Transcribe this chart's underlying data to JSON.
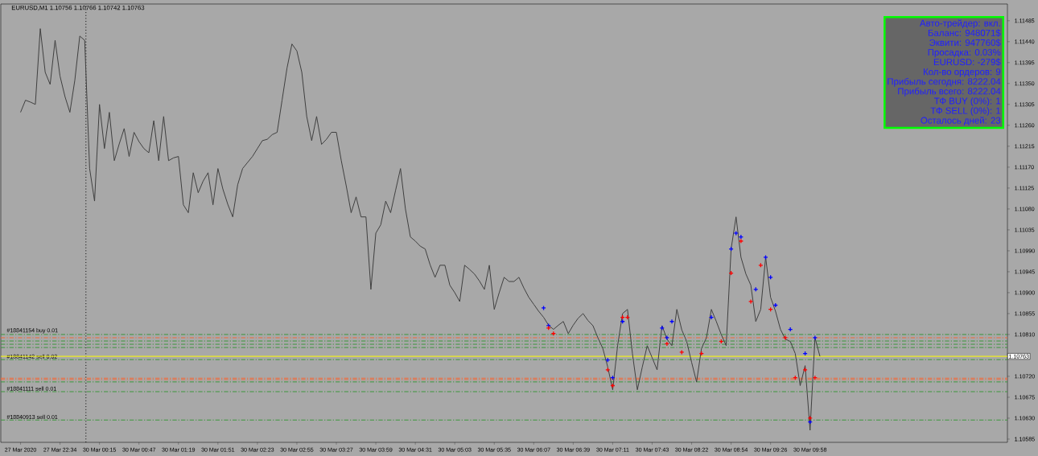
{
  "chart_data": {
    "type": "line",
    "title": "EURUSD,M1  1.10756 1.10766 1.10742 1.10763",
    "ylim": [
      1.10578,
      1.11521
    ],
    "categories": [
      "27 Mar 2020",
      null,
      null,
      null,
      null,
      null,
      null,
      null,
      "27 Mar 22:34",
      null,
      null,
      null,
      null,
      null,
      null,
      null,
      "30 Mar 00:15",
      null,
      null,
      null,
      null,
      null,
      null,
      null,
      "30 Mar 00:47",
      null,
      null,
      null,
      null,
      null,
      null,
      null,
      "30 Mar 01:19",
      null,
      null,
      null,
      null,
      null,
      null,
      null,
      "30 Mar 01:51",
      null,
      null,
      null,
      null,
      null,
      null,
      null,
      "30 Mar 02:23",
      null,
      null,
      null,
      null,
      null,
      null,
      null,
      "30 Mar 02:55",
      null,
      null,
      null,
      null,
      null,
      null,
      null,
      "30 Mar 03:27",
      null,
      null,
      null,
      null,
      null,
      null,
      null,
      "30 Mar 03:59",
      null,
      null,
      null,
      null,
      null,
      null,
      null,
      "30 Mar 04:31",
      null,
      null,
      null,
      null,
      null,
      null,
      null,
      "30 Mar 05:03",
      null,
      null,
      null,
      null,
      null,
      null,
      null,
      "30 Mar 05:35",
      null,
      null,
      null,
      null,
      null,
      null,
      null,
      "30 Mar 06:07",
      null,
      null,
      null,
      null,
      null,
      null,
      null,
      "30 Mar 06:39",
      null,
      null,
      null,
      null,
      null,
      null,
      null,
      "30 Mar 07:11",
      null,
      null,
      null,
      null,
      null,
      null,
      null,
      "30 Mar 07:43",
      null,
      null,
      null,
      null,
      null,
      null,
      null,
      "30 Mar 08:22",
      null,
      null,
      null,
      null,
      null,
      null,
      null,
      "30 Mar 08:54",
      null,
      null,
      null,
      null,
      null,
      null,
      null,
      "30 Mar 09:26",
      null,
      null,
      null,
      null,
      null,
      null,
      null,
      "30 Mar 09:58",
      null,
      null,
      null,
      null,
      null,
      null,
      null,
      null,
      null,
      null,
      null,
      null,
      null,
      null,
      null,
      null,
      null,
      null,
      null,
      null,
      null,
      null,
      null,
      null,
      null,
      null,
      null,
      null,
      null,
      null,
      null,
      null,
      null,
      null,
      null,
      null,
      null,
      null,
      null,
      null
    ],
    "yticks": [
      {
        "value": 1.11485,
        "label": "1.11485"
      },
      {
        "value": 1.1144,
        "label": "1.11440"
      },
      {
        "value": 1.11395,
        "label": "1.11395"
      },
      {
        "value": 1.1135,
        "label": "1.11350"
      },
      {
        "value": 1.11305,
        "label": "1.11305"
      },
      {
        "value": 1.1126,
        "label": "1.11260"
      },
      {
        "value": 1.11215,
        "label": "1.11215"
      },
      {
        "value": 1.1117,
        "label": "1.11170"
      },
      {
        "value": 1.11125,
        "label": "1.11125"
      },
      {
        "value": 1.1108,
        "label": "1.11080"
      },
      {
        "value": 1.11035,
        "label": "1.11035"
      },
      {
        "value": 1.1099,
        "label": "1.10990"
      },
      {
        "value": 1.10945,
        "label": "1.10945"
      },
      {
        "value": 1.109,
        "label": "1.10900"
      },
      {
        "value": 1.10855,
        "label": "1.10855"
      },
      {
        "value": 1.1081,
        "label": "1.10810"
      },
      {
        "value": 1.10765,
        "label": null
      },
      {
        "value": 1.1072,
        "label": "1.10720"
      },
      {
        "value": 1.10675,
        "label": "1.10675"
      },
      {
        "value": 1.1063,
        "label": "1.10630"
      },
      {
        "value": 1.10585,
        "label": "1.10585"
      }
    ],
    "series": [
      {
        "color": "#404040",
        "values": [
          1.11288,
          1.11314,
          1.1131,
          1.11305,
          1.11468,
          1.11374,
          1.11348,
          1.11443,
          1.11366,
          1.11322,
          1.11288,
          1.11357,
          1.11452,
          1.11443,
          1.11167,
          1.11097,
          1.11305,
          1.1121,
          1.11288,
          1.11184,
          1.1122,
          1.11253,
          1.11193,
          1.11245,
          1.11225,
          1.1121,
          1.11201,
          1.1127,
          1.11184,
          1.11279,
          1.11184,
          1.1119,
          1.11193,
          1.11089,
          1.11072,
          1.11158,
          1.11115,
          1.1114,
          1.11158,
          1.11089,
          1.11167,
          1.11123,
          1.1109,
          1.11063,
          1.11132,
          1.11167,
          1.1118,
          1.11193,
          1.1121,
          1.11227,
          1.1123,
          1.1124,
          1.11245,
          1.11314,
          1.11383,
          1.11435,
          1.1142,
          1.11374,
          1.11279,
          1.11227,
          1.11279,
          1.11219,
          1.1123,
          1.11245,
          1.11245,
          1.11184,
          1.1113,
          1.11072,
          1.11106,
          1.11063,
          1.11063,
          1.10907,
          1.11028,
          1.11046,
          1.11097,
          1.11072,
          1.1112,
          1.11167,
          1.1108,
          1.1102,
          1.11011,
          1.11,
          1.10994,
          1.1096,
          1.10933,
          1.10959,
          1.10959,
          1.10916,
          1.109,
          1.10881,
          1.10959,
          1.1095,
          1.1094,
          1.10925,
          1.10907,
          1.10959,
          1.10864,
          1.109,
          1.10933,
          1.10924,
          1.10924,
          1.10933,
          1.1091,
          1.1089,
          1.10875,
          1.1086,
          1.10847,
          1.1083,
          1.10821,
          1.1083,
          1.10838,
          1.10812,
          1.1083,
          1.10845,
          1.10855,
          1.1084,
          1.10829,
          1.10803,
          1.1078,
          1.1074,
          1.10691,
          1.10786,
          1.10855,
          1.10864,
          1.10769,
          1.10691,
          1.1074,
          1.10786,
          1.1076,
          1.10734,
          1.10829,
          1.108,
          1.10786,
          1.10864,
          1.1082,
          1.10795,
          1.1075,
          1.10708,
          1.1078,
          1.10803,
          1.10864,
          1.10838,
          1.1081,
          1.10786,
          1.10994,
          1.11063,
          1.10976,
          1.1094,
          1.10916,
          1.10838,
          1.10864,
          1.10976,
          1.1089,
          1.1086,
          1.10821,
          1.108,
          1.10795,
          1.10769,
          1.107,
          1.10743,
          1.10604,
          1.10803,
          1.10763,
          null,
          null,
          null,
          null,
          null,
          null,
          null,
          null,
          null,
          null,
          null,
          null,
          null,
          null,
          null,
          null,
          null,
          null,
          null,
          null,
          null,
          null,
          null,
          null,
          null,
          null,
          null,
          null,
          null,
          null,
          null,
          null,
          null,
          null,
          null,
          null,
          null,
          null
        ]
      },
      {
        "type": "scatter",
        "color": "#0000ff",
        "marker": "cross",
        "values": [
          null,
          null,
          null,
          null,
          null,
          null,
          null,
          null,
          null,
          null,
          null,
          null,
          null,
          null,
          null,
          null,
          null,
          null,
          null,
          null,
          null,
          null,
          null,
          null,
          null,
          null,
          null,
          null,
          null,
          null,
          null,
          null,
          null,
          null,
          null,
          null,
          null,
          null,
          null,
          null,
          null,
          null,
          null,
          null,
          null,
          null,
          null,
          null,
          null,
          null,
          null,
          null,
          null,
          null,
          null,
          null,
          null,
          null,
          null,
          null,
          null,
          null,
          null,
          null,
          null,
          null,
          null,
          null,
          null,
          null,
          null,
          null,
          null,
          null,
          null,
          null,
          null,
          null,
          null,
          null,
          null,
          null,
          null,
          null,
          null,
          null,
          null,
          null,
          null,
          null,
          null,
          null,
          null,
          null,
          null,
          null,
          null,
          null,
          null,
          null,
          null,
          null,
          null,
          null,
          null,
          null,
          1.10867,
          1.10829,
          null,
          null,
          null,
          null,
          null,
          null,
          null,
          null,
          null,
          null,
          null,
          1.10755,
          1.10717,
          null,
          1.10838,
          null,
          null,
          null,
          null,
          null,
          null,
          null,
          1.10824,
          1.10803,
          1.10838,
          null,
          null,
          null,
          null,
          null,
          null,
          null,
          1.10847,
          null,
          null,
          null,
          1.10994,
          1.11028,
          1.1102,
          null,
          null,
          1.10907,
          null,
          1.10976,
          1.10933,
          1.10873,
          null,
          null,
          1.10821,
          null,
          null,
          1.10769,
          1.10622,
          1.10803,
          null,
          null,
          null,
          null,
          null,
          null,
          null,
          null,
          null,
          null,
          null,
          null,
          null,
          null,
          null,
          null,
          null,
          null,
          null,
          null,
          null,
          null,
          null,
          null,
          null,
          null,
          null,
          null,
          null,
          null,
          null,
          null,
          null,
          null,
          null,
          null,
          null,
          null,
          null
        ]
      },
      {
        "type": "scatter",
        "color": "#ff0000",
        "marker": "cross",
        "values": [
          null,
          null,
          null,
          null,
          null,
          null,
          null,
          null,
          null,
          null,
          null,
          null,
          null,
          null,
          null,
          null,
          null,
          null,
          null,
          null,
          null,
          null,
          null,
          null,
          null,
          null,
          null,
          null,
          null,
          null,
          null,
          null,
          null,
          null,
          null,
          null,
          null,
          null,
          null,
          null,
          null,
          null,
          null,
          null,
          null,
          null,
          null,
          null,
          null,
          null,
          null,
          null,
          null,
          null,
          null,
          null,
          null,
          null,
          null,
          null,
          null,
          null,
          null,
          null,
          null,
          null,
          null,
          null,
          null,
          null,
          null,
          null,
          null,
          null,
          null,
          null,
          null,
          null,
          null,
          null,
          null,
          null,
          null,
          null,
          null,
          null,
          null,
          null,
          null,
          null,
          null,
          null,
          null,
          null,
          null,
          null,
          null,
          null,
          null,
          null,
          null,
          null,
          null,
          null,
          null,
          null,
          null,
          1.10824,
          1.10812,
          null,
          null,
          null,
          null,
          null,
          null,
          null,
          null,
          null,
          null,
          1.10734,
          1.107,
          null,
          1.10847,
          1.10847,
          null,
          null,
          null,
          null,
          null,
          null,
          null,
          1.1079,
          null,
          null,
          1.10772,
          null,
          null,
          null,
          1.10769,
          null,
          null,
          null,
          1.10795,
          null,
          1.10942,
          null,
          1.11011,
          null,
          1.10881,
          null,
          1.10959,
          null,
          1.10864,
          null,
          null,
          1.10803,
          null,
          1.10717,
          null,
          1.10734,
          1.1063,
          1.10717,
          null,
          null,
          null,
          null,
          null,
          null,
          null,
          null,
          null,
          null,
          null,
          null,
          null,
          null,
          null,
          null,
          null,
          null,
          null,
          null,
          null,
          null,
          null,
          null,
          null,
          null,
          null,
          null,
          null,
          null,
          null,
          null,
          null,
          null,
          null,
          null,
          null,
          null,
          null
        ]
      }
    ],
    "ref_lines": [
      {
        "axis": "y",
        "value": 1.1081,
        "label": "#18841154 buy 0.01",
        "color": "#3c963c",
        "line_style": "dashdot"
      },
      {
        "axis": "y",
        "value": 1.10803,
        "color": "#f06a3c",
        "line_style": "dashdot"
      },
      {
        "axis": "y",
        "value": 1.10796,
        "color": "#3c963c",
        "line_style": "dashdot"
      },
      {
        "axis": "y",
        "value": 1.10789,
        "color": "#3c963c",
        "line_style": "dashdot"
      },
      {
        "axis": "y",
        "value": 1.10782,
        "color": "#3c963c",
        "line_style": "dashdot"
      },
      {
        "axis": "y",
        "value": 1.10756,
        "label": "#18841142 sell 0.02",
        "color": "#3c963c",
        "line_style": "dashdot"
      },
      {
        "axis": "y",
        "value": 1.10716,
        "color": "#f06a3c",
        "line_style": "dashdot"
      },
      {
        "axis": "y",
        "value": 1.10713,
        "color": "#f06a3c",
        "line_style": "dashdot"
      },
      {
        "axis": "y",
        "value": 1.10708,
        "color": "#3c963c",
        "line_style": "dashdot"
      },
      {
        "axis": "y",
        "value": 1.10687,
        "label": "#18841111 sell 0.01",
        "color": "#3c963c",
        "line_style": "dashdot"
      },
      {
        "axis": "y",
        "value": 1.10626,
        "label": "#18840913 sell 0.01",
        "color": "#3c963c",
        "line_style": "dashdot"
      },
      {
        "axis": "y",
        "value": 1.10763,
        "label": "1.10763",
        "color": "#ffff00",
        "line_style": "solid"
      }
    ],
    "annotations": [
      "Авто-трейдер: вкл.",
      "Баланс: 948071$",
      "Эквити: 947760$",
      "Просадка: 0.03%",
      "EURUSD: -279$",
      "Кол-во ордеров: 9",
      "Прибыль сегодня: 8222.04",
      "Прибыль всего: 8222.04",
      "ТФ BUY  (0%): 1",
      "ТФ SELL (0%): 1",
      "Осталось дней: 23"
    ]
  }
}
